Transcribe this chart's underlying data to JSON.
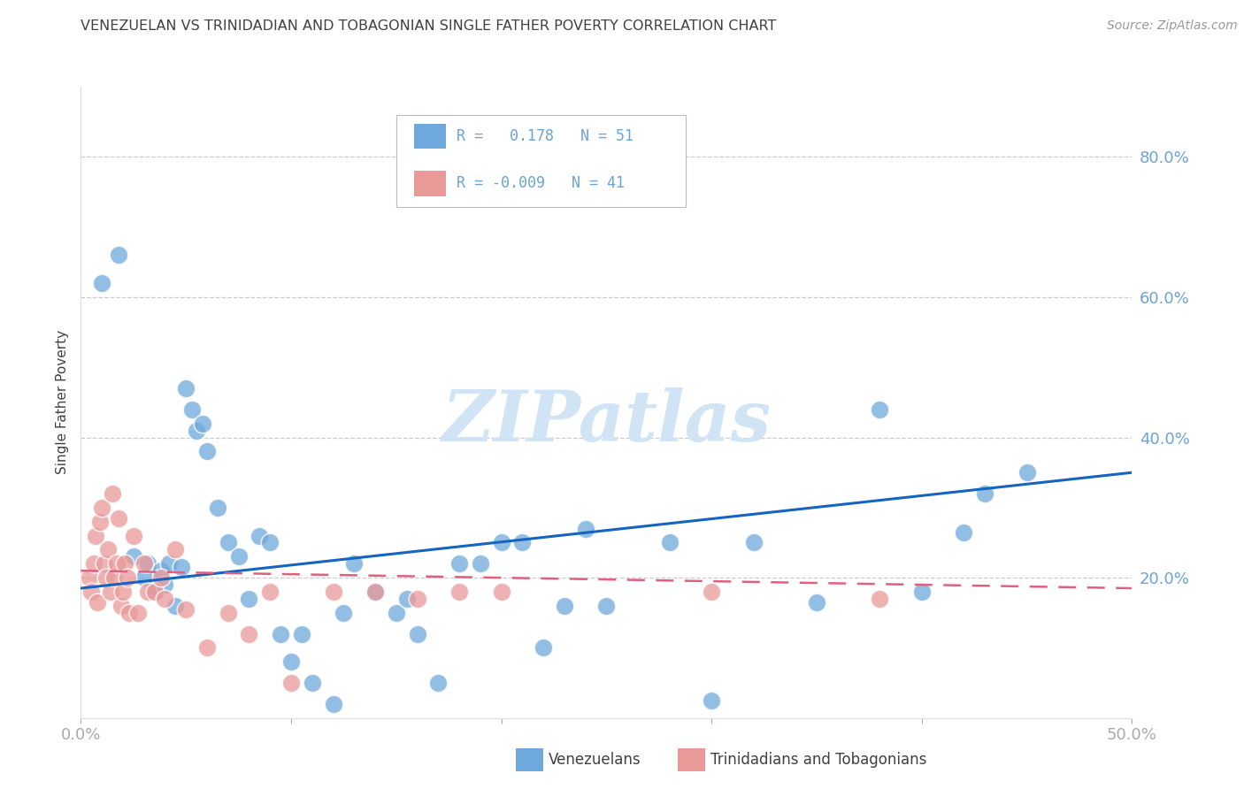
{
  "title": "VENEZUELAN VS TRINIDADIAN AND TOBAGONIAN SINGLE FATHER POVERTY CORRELATION CHART",
  "source": "Source: ZipAtlas.com",
  "ylabel": "Single Father Poverty",
  "xlim": [
    0.0,
    0.5
  ],
  "ylim": [
    0.0,
    0.9
  ],
  "color_venezuelan": "#6fa8dc",
  "color_trinidadian": "#ea9999",
  "R_venezuelan": 0.178,
  "N_venezuelan": 51,
  "R_trinidadian": -0.009,
  "N_trinidadian": 41,
  "venezuelan_x": [
    0.01,
    0.018,
    0.025,
    0.03,
    0.032,
    0.035,
    0.038,
    0.04,
    0.042,
    0.045,
    0.048,
    0.05,
    0.053,
    0.055,
    0.058,
    0.06,
    0.065,
    0.07,
    0.075,
    0.08,
    0.085,
    0.09,
    0.095,
    0.1,
    0.105,
    0.11,
    0.12,
    0.125,
    0.13,
    0.14,
    0.15,
    0.155,
    0.16,
    0.17,
    0.18,
    0.19,
    0.2,
    0.21,
    0.22,
    0.23,
    0.24,
    0.25,
    0.28,
    0.3,
    0.32,
    0.35,
    0.38,
    0.4,
    0.42,
    0.43,
    0.45
  ],
  "venezuelan_y": [
    0.62,
    0.66,
    0.23,
    0.2,
    0.22,
    0.18,
    0.21,
    0.19,
    0.22,
    0.16,
    0.215,
    0.47,
    0.44,
    0.41,
    0.42,
    0.38,
    0.3,
    0.25,
    0.23,
    0.17,
    0.26,
    0.25,
    0.12,
    0.08,
    0.12,
    0.05,
    0.02,
    0.15,
    0.22,
    0.18,
    0.15,
    0.17,
    0.12,
    0.05,
    0.22,
    0.22,
    0.25,
    0.25,
    0.1,
    0.16,
    0.27,
    0.16,
    0.25,
    0.025,
    0.25,
    0.165,
    0.44,
    0.18,
    0.265,
    0.32,
    0.35
  ],
  "trinidadian_x": [
    0.004,
    0.005,
    0.006,
    0.007,
    0.008,
    0.009,
    0.01,
    0.011,
    0.012,
    0.013,
    0.014,
    0.015,
    0.016,
    0.017,
    0.018,
    0.019,
    0.02,
    0.021,
    0.022,
    0.023,
    0.025,
    0.027,
    0.03,
    0.032,
    0.035,
    0.038,
    0.04,
    0.045,
    0.05,
    0.06,
    0.07,
    0.08,
    0.09,
    0.1,
    0.12,
    0.14,
    0.16,
    0.18,
    0.2,
    0.3,
    0.38
  ],
  "trinidadian_y": [
    0.2,
    0.18,
    0.22,
    0.26,
    0.165,
    0.28,
    0.3,
    0.22,
    0.2,
    0.24,
    0.18,
    0.32,
    0.2,
    0.22,
    0.285,
    0.16,
    0.18,
    0.22,
    0.2,
    0.15,
    0.26,
    0.15,
    0.22,
    0.18,
    0.18,
    0.2,
    0.17,
    0.24,
    0.155,
    0.1,
    0.15,
    0.12,
    0.18,
    0.05,
    0.18,
    0.18,
    0.17,
    0.18,
    0.18,
    0.18,
    0.17
  ],
  "grid_color": "#cccccc",
  "title_color": "#404040",
  "tick_label_color": "#6aa3d5",
  "background_color": "#ffffff",
  "watermark_color": "#d0e4f5"
}
